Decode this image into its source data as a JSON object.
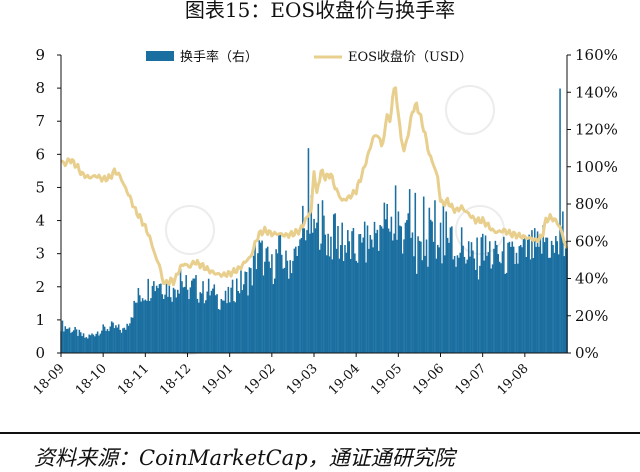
{
  "header": {
    "title": "图表15：EOS收盘价与换手率"
  },
  "footer": {
    "source": "资料来源：CoinMarketCap，通证通研究院"
  },
  "chart_data": {
    "type": "bar+line",
    "x_ticks": [
      "18-09",
      "18-10",
      "18-11",
      "18-12",
      "19-01",
      "19-02",
      "19-03",
      "19-04",
      "19-05",
      "19-06",
      "19-07",
      "19-08"
    ],
    "left_axis": {
      "ylim": [
        0,
        9
      ],
      "ticks": [
        "0",
        "1",
        "2",
        "3",
        "4",
        "5",
        "6",
        "7",
        "8",
        "9"
      ]
    },
    "right_axis": {
      "ylim": [
        0,
        160
      ],
      "ticks": [
        "0%",
        "20%",
        "40%",
        "60%",
        "80%",
        "100%",
        "120%",
        "140%",
        "160%"
      ]
    },
    "legend": {
      "position": "top",
      "entries": [
        "换手率（右）",
        "EOS收盘价（USD）"
      ]
    },
    "colors": {
      "turnover": "#1a6fa0",
      "price": "#e8cf8e",
      "axis": "#111111"
    },
    "series": [
      {
        "name": "换手率（右）",
        "kind": "bar",
        "axis": "right",
        "anchors": [
          [
            0,
            15
          ],
          [
            9,
            12
          ],
          [
            18,
            8
          ],
          [
            27,
            12
          ],
          [
            36,
            14
          ],
          [
            45,
            12
          ],
          [
            55,
            30
          ],
          [
            62,
            35
          ],
          [
            68,
            38
          ],
          [
            75,
            36
          ],
          [
            80,
            34
          ],
          [
            85,
            40
          ],
          [
            90,
            34
          ],
          [
            95,
            36
          ],
          [
            100,
            32
          ],
          [
            105,
            34
          ],
          [
            110,
            30
          ],
          [
            118,
            28
          ],
          [
            125,
            36
          ],
          [
            135,
            40
          ],
          [
            140,
            55
          ],
          [
            145,
            50
          ],
          [
            150,
            45
          ],
          [
            155,
            55
          ],
          [
            160,
            48
          ],
          [
            168,
            52
          ],
          [
            175,
            62
          ],
          [
            178,
            70
          ],
          [
            181,
            68
          ],
          [
            185,
            72
          ],
          [
            190,
            60
          ],
          [
            195,
            62
          ],
          [
            200,
            58
          ],
          [
            210,
            55
          ],
          [
            220,
            60
          ],
          [
            228,
            70
          ],
          [
            235,
            70
          ],
          [
            240,
            62
          ],
          [
            245,
            66
          ],
          [
            250,
            58
          ],
          [
            255,
            50
          ],
          [
            260,
            58
          ],
          [
            265,
            60
          ],
          [
            270,
            52
          ],
          [
            275,
            62
          ],
          [
            280,
            55
          ],
          [
            285,
            58
          ],
          [
            290,
            52
          ],
          [
            296,
            48
          ],
          [
            300,
            55
          ],
          [
            305,
            52
          ],
          [
            310,
            50
          ],
          [
            315,
            52
          ],
          [
            320,
            50
          ],
          [
            330,
            54
          ],
          [
            340,
            56
          ],
          [
            345,
            62
          ],
          [
            350,
            55
          ],
          [
            355,
            57
          ],
          [
            358,
            60
          ]
        ],
        "spikes": [
          [
            56,
            31
          ],
          [
            65,
            36
          ],
          [
            70,
            37
          ],
          [
            80,
            35
          ],
          [
            85,
            45
          ],
          [
            90,
            34
          ],
          [
            100,
            32
          ],
          [
            104,
            33
          ],
          [
            110,
            31
          ],
          [
            125,
            40
          ],
          [
            134,
            46
          ],
          [
            138,
            60
          ],
          [
            145,
            49
          ],
          [
            160,
            55
          ],
          [
            170,
            61
          ],
          [
            172,
            79
          ],
          [
            175,
            66
          ],
          [
            176,
            110
          ],
          [
            180,
            72
          ],
          [
            182,
            70
          ],
          [
            190,
            64
          ],
          [
            195,
            75
          ],
          [
            200,
            70
          ],
          [
            215,
            62
          ],
          [
            228,
            68
          ],
          [
            232,
            80
          ],
          [
            238,
            90
          ],
          [
            240,
            76
          ],
          [
            242,
            68
          ],
          [
            245,
            70
          ],
          [
            248,
            88
          ],
          [
            252,
            86
          ],
          [
            258,
            84
          ],
          [
            262,
            78
          ],
          [
            266,
            82
          ],
          [
            270,
            70
          ],
          [
            272,
            80
          ],
          [
            274,
            76
          ],
          [
            278,
            68
          ],
          [
            290,
            60
          ],
          [
            296,
            62
          ],
          [
            300,
            64
          ],
          [
            305,
            60
          ],
          [
            310,
            58
          ],
          [
            340,
            57
          ],
          [
            345,
            62
          ],
          [
            350,
            58
          ],
          [
            353,
            60
          ],
          [
            355,
            142
          ],
          [
            357,
            76
          ],
          [
            359,
            60
          ]
        ]
      },
      {
        "name": "EOS收盘价（USD）",
        "kind": "line",
        "axis": "left",
        "anchors": [
          [
            0,
            5.8
          ],
          [
            3,
            5.7
          ],
          [
            6,
            5.85
          ],
          [
            9,
            5.75
          ],
          [
            12,
            5.6
          ],
          [
            15,
            5.4
          ],
          [
            20,
            5.3
          ],
          [
            25,
            5.35
          ],
          [
            30,
            5.25
          ],
          [
            35,
            5.3
          ],
          [
            38,
            5.5
          ],
          [
            42,
            5.35
          ],
          [
            45,
            5.05
          ],
          [
            48,
            4.8
          ],
          [
            50,
            4.6
          ],
          [
            53,
            4.3
          ],
          [
            56,
            4.1
          ],
          [
            60,
            3.8
          ],
          [
            63,
            3.5
          ],
          [
            66,
            3.1
          ],
          [
            68,
            2.8
          ],
          [
            70,
            2.7
          ],
          [
            72,
            2.2
          ],
          [
            75,
            2.1
          ],
          [
            78,
            2.2
          ],
          [
            80,
            2.15
          ],
          [
            82,
            2.3
          ],
          [
            85,
            2.6
          ],
          [
            88,
            2.7
          ],
          [
            91,
            2.6
          ],
          [
            95,
            2.75
          ],
          [
            100,
            2.65
          ],
          [
            105,
            2.5
          ],
          [
            110,
            2.4
          ],
          [
            115,
            2.35
          ],
          [
            120,
            2.4
          ],
          [
            125,
            2.5
          ],
          [
            128,
            2.6
          ],
          [
            132,
            2.8
          ],
          [
            135,
            2.9
          ],
          [
            138,
            3.3
          ],
          [
            141,
            3.6
          ],
          [
            145,
            3.7
          ],
          [
            150,
            3.6
          ],
          [
            155,
            3.6
          ],
          [
            160,
            3.55
          ],
          [
            165,
            3.6
          ],
          [
            170,
            3.7
          ],
          [
            175,
            4.1
          ],
          [
            178,
            4.3
          ],
          [
            180,
            5.5
          ],
          [
            182,
            4.8
          ],
          [
            185,
            5.5
          ],
          [
            188,
            5.3
          ],
          [
            192,
            5.4
          ],
          [
            195,
            5.0
          ],
          [
            200,
            4.6
          ],
          [
            205,
            4.7
          ],
          [
            210,
            4.9
          ],
          [
            215,
            5.5
          ],
          [
            220,
            6.2
          ],
          [
            222,
            6.5
          ],
          [
            225,
            6.6
          ],
          [
            228,
            6.3
          ],
          [
            230,
            6.5
          ],
          [
            232,
            7.3
          ],
          [
            234,
            6.9
          ],
          [
            236,
            7.8
          ],
          [
            238,
            8.0
          ],
          [
            240,
            7.2
          ],
          [
            242,
            6.5
          ],
          [
            244,
            6.1
          ],
          [
            247,
            6.6
          ],
          [
            250,
            7.3
          ],
          [
            253,
            7.5
          ],
          [
            256,
            7.1
          ],
          [
            259,
            6.6
          ],
          [
            262,
            6.0
          ],
          [
            265,
            5.7
          ],
          [
            268,
            5.3
          ],
          [
            270,
            4.6
          ],
          [
            272,
            4.5
          ],
          [
            275,
            4.6
          ],
          [
            278,
            4.4
          ],
          [
            281,
            4.3
          ],
          [
            285,
            4.4
          ],
          [
            290,
            4.2
          ],
          [
            295,
            4.0
          ],
          [
            300,
            4.0
          ],
          [
            304,
            3.85
          ],
          [
            307,
            3.7
          ],
          [
            310,
            3.65
          ],
          [
            315,
            3.7
          ],
          [
            320,
            3.6
          ],
          [
            325,
            3.55
          ],
          [
            330,
            3.5
          ],
          [
            335,
            3.45
          ],
          [
            338,
            3.4
          ],
          [
            342,
            3.5
          ],
          [
            345,
            4.0
          ],
          [
            348,
            4.1
          ],
          [
            352,
            4.0
          ],
          [
            355,
            3.8
          ],
          [
            358,
            3.4
          ],
          [
            360,
            3.1
          ]
        ]
      }
    ]
  }
}
